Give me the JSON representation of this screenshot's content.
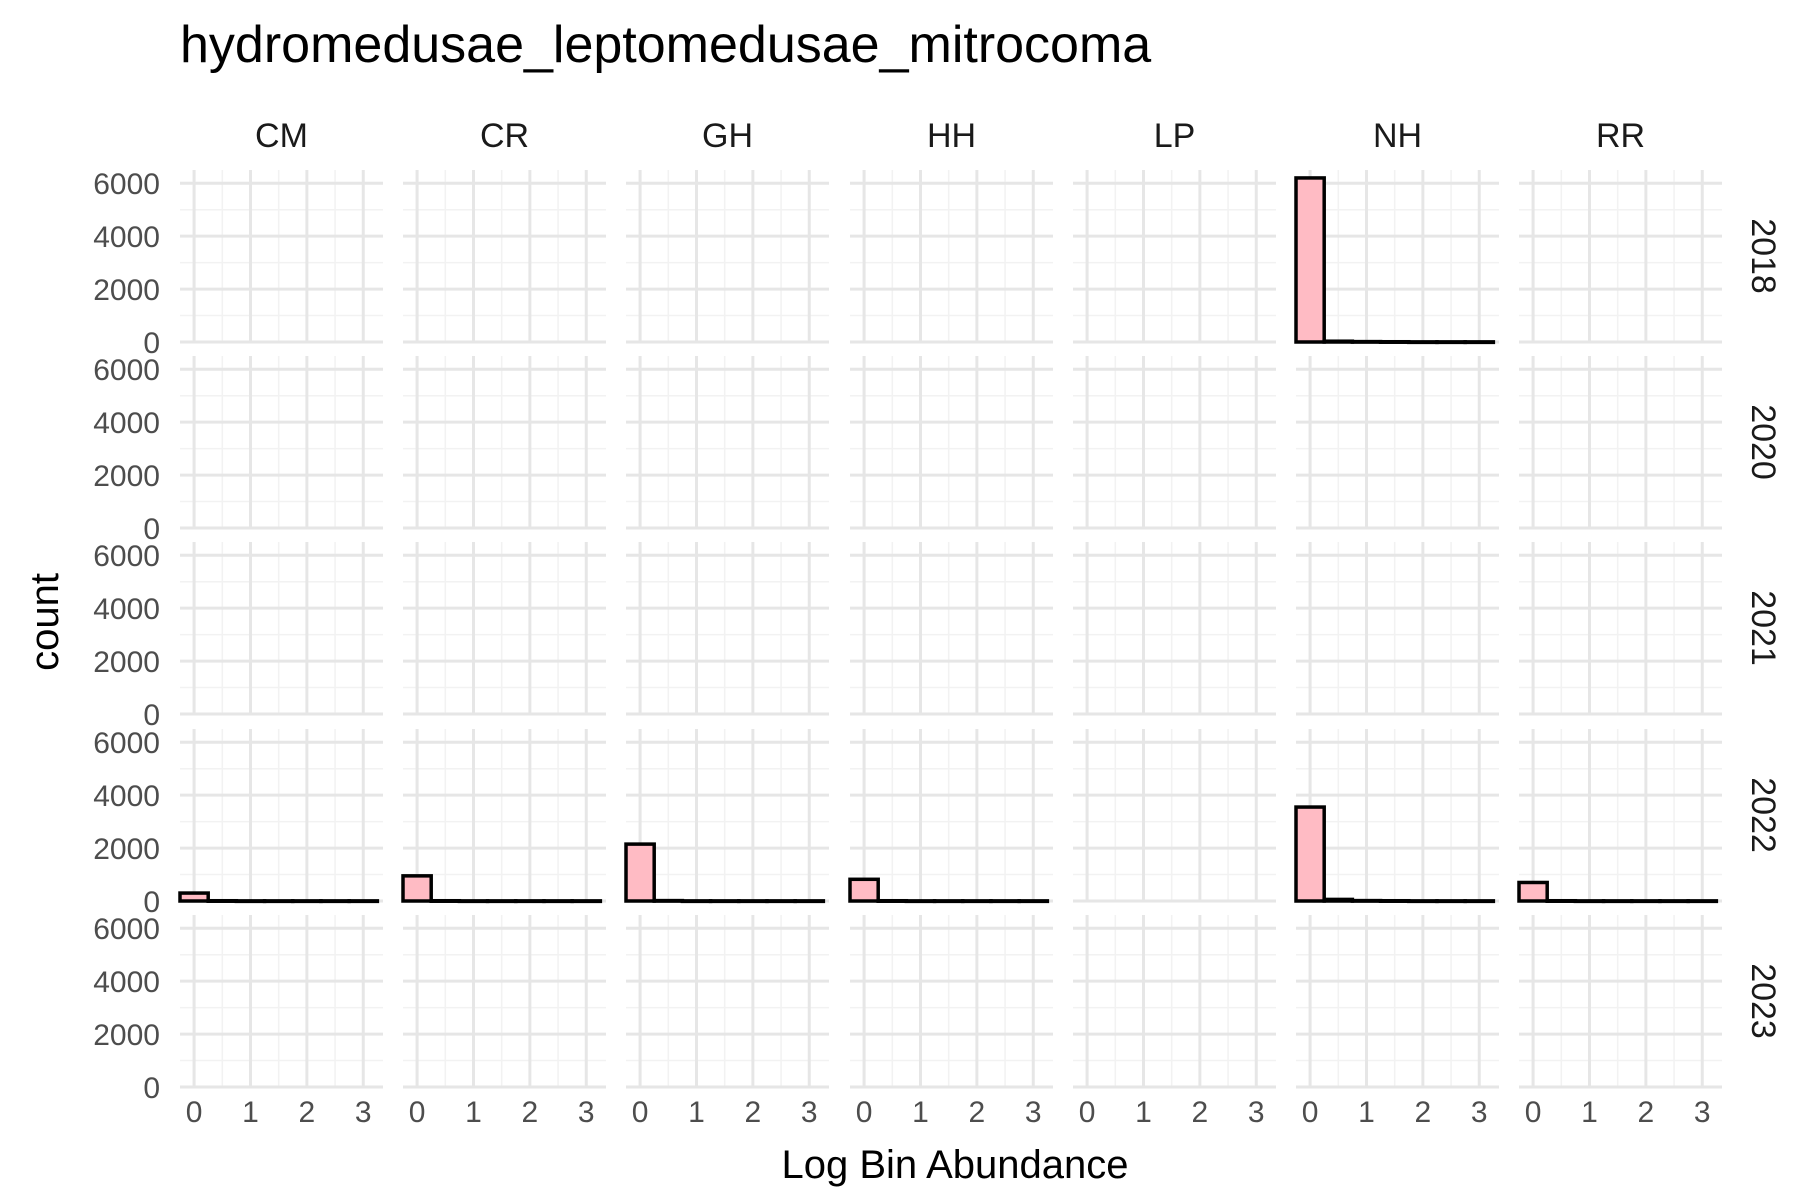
{
  "chart_data": {
    "type": "bar",
    "title": "hydromedusae_leptomedusae_mitrocoma",
    "xlabel": "Log Bin Abundance",
    "ylabel": "count",
    "columns": [
      "CM",
      "CR",
      "GH",
      "HH",
      "LP",
      "NH",
      "RR"
    ],
    "rows": [
      "2018",
      "2020",
      "2021",
      "2022",
      "2023"
    ],
    "xlim": [
      -0.25,
      3.35
    ],
    "ylim": [
      0,
      6500
    ],
    "x_ticks": [
      "0",
      "1",
      "2",
      "3"
    ],
    "y_ticks": [
      "0",
      "2000",
      "4000",
      "6000"
    ],
    "bin_width": 0.5,
    "grid": true,
    "bar_fill": "#ffbbc4",
    "bar_stroke": "#000000",
    "bins": [
      0,
      0.5,
      1,
      1.5,
      2,
      2.5,
      3
    ],
    "panels": [
      {
        "row": "2018",
        "column": "NH",
        "values": [
          6200,
          30,
          15,
          10,
          5,
          5,
          5
        ]
      },
      {
        "row": "2022",
        "column": "CM",
        "values": [
          300,
          10,
          5,
          5,
          5,
          5,
          5
        ]
      },
      {
        "row": "2022",
        "column": "CR",
        "values": [
          950,
          10,
          5,
          5,
          5,
          5,
          5
        ]
      },
      {
        "row": "2022",
        "column": "GH",
        "values": [
          2150,
          15,
          5,
          5,
          5,
          5,
          5
        ]
      },
      {
        "row": "2022",
        "column": "HH",
        "values": [
          820,
          10,
          5,
          5,
          5,
          5,
          5
        ]
      },
      {
        "row": "2022",
        "column": "NH",
        "values": [
          3550,
          60,
          15,
          10,
          5,
          5,
          5
        ]
      },
      {
        "row": "2022",
        "column": "RR",
        "values": [
          700,
          10,
          5,
          5,
          5,
          5,
          5
        ]
      }
    ]
  }
}
